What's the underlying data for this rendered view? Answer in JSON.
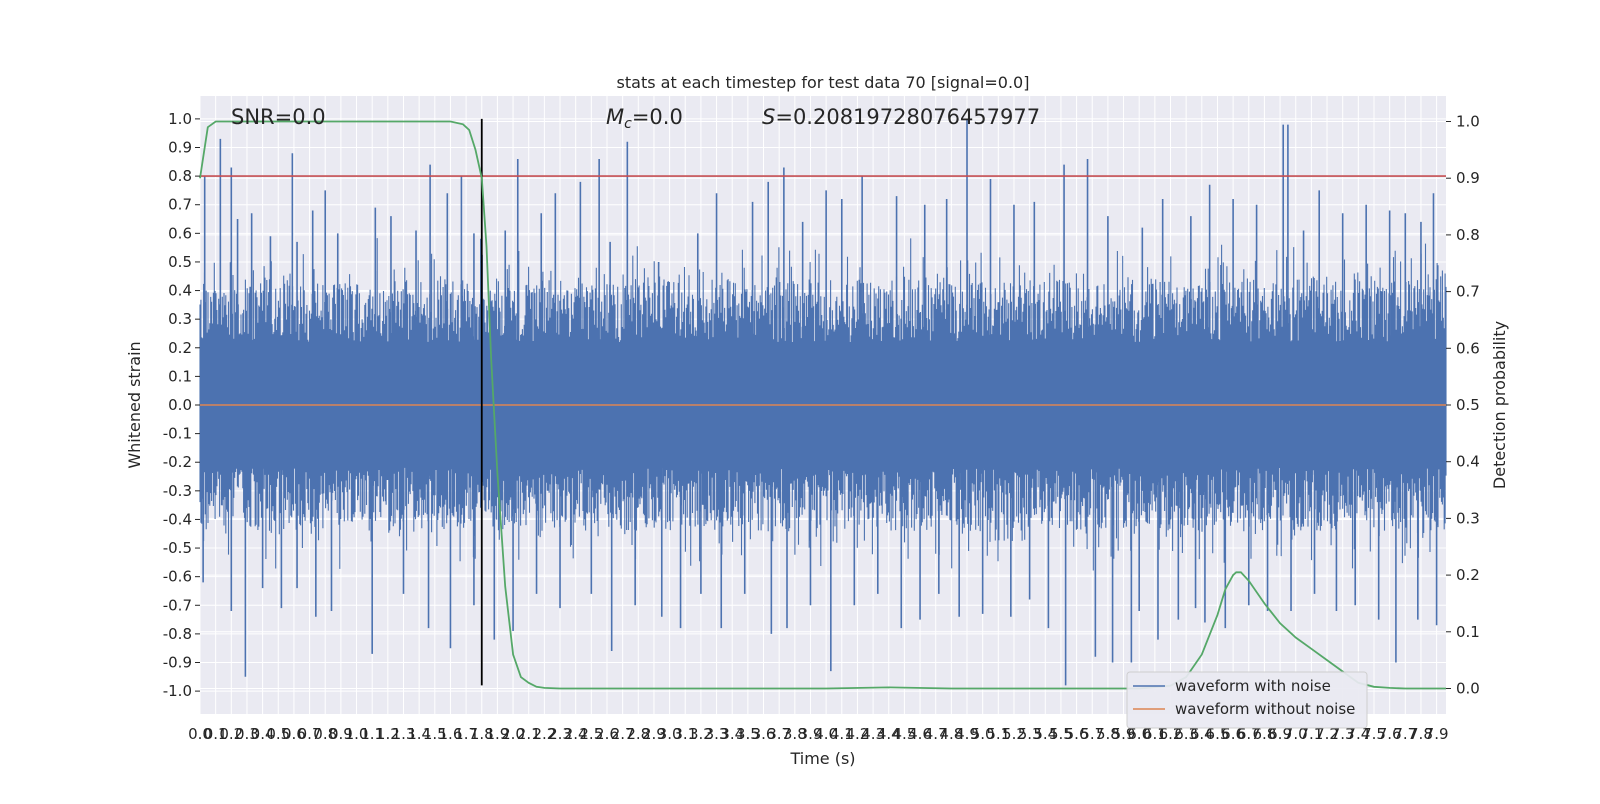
{
  "chart_data": {
    "type": "line",
    "title": "stats at each timestep for test data 70 [signal=0.0]",
    "xlabel": "Time (s)",
    "ylabel": "Whitened strain",
    "y2label": "Detection probability",
    "xlim": [
      0.0,
      7.96
    ],
    "ylim": [
      -1.08,
      1.08
    ],
    "y2lim": [
      -0.045,
      1.045
    ],
    "x_ticks": [
      0.0,
      0.1,
      0.2,
      0.3,
      0.4,
      0.5,
      0.6,
      0.7,
      0.8,
      0.9,
      1.0,
      1.1,
      1.2,
      1.3,
      1.4,
      1.5,
      1.6,
      1.7,
      1.8,
      1.9,
      2.0,
      2.1,
      2.2,
      2.3,
      2.4,
      2.5,
      2.6,
      2.7,
      2.8,
      2.9,
      3.0,
      3.1,
      3.2,
      3.3,
      3.4,
      3.5,
      3.6,
      3.7,
      3.8,
      3.9,
      4.0,
      4.1,
      4.2,
      4.3,
      4.4,
      4.5,
      4.6,
      4.7,
      4.8,
      4.9,
      5.0,
      5.1,
      5.2,
      5.3,
      5.4,
      5.5,
      5.6,
      5.7,
      5.8,
      5.9,
      6.0,
      6.1,
      6.2,
      6.3,
      6.4,
      6.5,
      6.6,
      6.7,
      6.8,
      6.9,
      7.0,
      7.1,
      7.2,
      7.3,
      7.4,
      7.5,
      7.6,
      7.7,
      7.8,
      7.9
    ],
    "x_tick_labels": [
      "0.0",
      "0.1",
      "0.2",
      "0.3",
      "0.4",
      "0.5",
      "0.6",
      "0.7",
      "0.8",
      "0.9",
      "1.0",
      "1.1",
      "1.2",
      "1.3",
      "1.4",
      "1.5",
      "1.6",
      "1.7",
      "1.8",
      "1.9",
      "2.0",
      "2.1",
      "2.2",
      "2.3",
      "2.4",
      "2.5",
      "2.6",
      "2.7",
      "2.8",
      "2.9",
      "3.0",
      "3.1",
      "3.2",
      "3.3",
      "3.4",
      "3.5",
      "3.6",
      "3.7",
      "3.8",
      "3.9",
      "4.0",
      "4.1",
      "4.2",
      "4.3",
      "4.4",
      "4.5",
      "4.6",
      "4.7",
      "4.8",
      "4.9",
      "5.0",
      "5.1",
      "5.2",
      "5.3",
      "5.4",
      "5.5",
      "5.6",
      "5.7",
      "5.8",
      "5.9",
      "6.0",
      "6.1",
      "6.2",
      "6.3",
      "6.4",
      "6.5",
      "6.6",
      "6.7",
      "6.8",
      "6.9",
      "7.0",
      "7.1",
      "7.2",
      "7.3",
      "7.4",
      "7.5",
      "7.6",
      "7.7",
      "7.8",
      "7.9"
    ],
    "y_ticks": [
      1.0,
      0.9,
      0.8,
      0.7,
      0.6,
      0.5,
      0.4,
      0.3,
      0.2,
      0.1,
      0.0,
      -0.1,
      -0.2,
      -0.3,
      -0.4,
      -0.5,
      -0.6,
      -0.7,
      -0.8,
      -0.9,
      -1.0
    ],
    "y_tick_labels": [
      "1.0",
      "0.9",
      "0.8",
      "0.7",
      "0.6",
      "0.5",
      "0.4",
      "0.3",
      "0.2",
      "0.1",
      "0.0",
      "-0.1",
      "-0.2",
      "-0.3",
      "-0.4",
      "-0.5",
      "-0.6",
      "-0.7",
      "-0.8",
      "-0.9",
      "-1.0"
    ],
    "y2_ticks": [
      1.0,
      0.9,
      0.8,
      0.7,
      0.6,
      0.5,
      0.4,
      0.3,
      0.2,
      0.1,
      0.0
    ],
    "y2_tick_labels": [
      "1.0",
      "0.9",
      "0.8",
      "0.7",
      "0.6",
      "0.5",
      "0.4",
      "0.3",
      "0.2",
      "0.1",
      "0.0"
    ],
    "grid": true,
    "legend_position": "lower-right",
    "annotations": {
      "snr": "SNR=0.0",
      "mc_symbol": "M",
      "mc_subscript": "c",
      "mc_value": "=0.0",
      "s_symbol": "S",
      "s_value": "=0.20819728076457977"
    },
    "series": [
      {
        "name": "waveform with noise",
        "color": "#4c72b0",
        "kind": "noise",
        "peaks_upper": [
          [
            0.03,
            0.8
          ],
          [
            0.13,
            0.93
          ],
          [
            0.2,
            0.83
          ],
          [
            0.24,
            0.65
          ],
          [
            0.33,
            0.67
          ],
          [
            0.45,
            0.59
          ],
          [
            0.59,
            0.88
          ],
          [
            0.62,
            0.57
          ],
          [
            0.72,
            0.68
          ],
          [
            0.8,
            0.75
          ],
          [
            0.88,
            0.6
          ],
          [
            1.12,
            0.69
          ],
          [
            1.22,
            0.66
          ],
          [
            1.38,
            0.61
          ],
          [
            1.47,
            0.84
          ],
          [
            1.58,
            0.74
          ],
          [
            1.67,
            0.8
          ],
          [
            1.75,
            0.6
          ],
          [
            1.95,
            0.61
          ],
          [
            2.03,
            0.86
          ],
          [
            2.18,
            0.67
          ],
          [
            2.27,
            0.74
          ],
          [
            2.43,
            0.78
          ],
          [
            2.55,
            0.86
          ],
          [
            2.62,
            0.57
          ],
          [
            2.73,
            0.92
          ],
          [
            2.93,
            0.5
          ],
          [
            3.18,
            0.6
          ],
          [
            3.3,
            0.74
          ],
          [
            3.53,
            0.71
          ],
          [
            3.63,
            0.78
          ],
          [
            3.73,
            0.83
          ],
          [
            3.85,
            0.64
          ],
          [
            4.0,
            0.75
          ],
          [
            4.1,
            0.72
          ],
          [
            4.23,
            0.8
          ],
          [
            4.45,
            0.73
          ],
          [
            4.63,
            0.7
          ],
          [
            4.77,
            0.72
          ],
          [
            4.9,
            1.0
          ],
          [
            5.05,
            0.79
          ],
          [
            5.2,
            0.7
          ],
          [
            5.33,
            0.71
          ],
          [
            5.52,
            0.84
          ],
          [
            5.67,
            0.86
          ],
          [
            5.8,
            0.66
          ],
          [
            6.02,
            0.62
          ],
          [
            6.15,
            0.72
          ],
          [
            6.33,
            0.66
          ],
          [
            6.45,
            0.77
          ],
          [
            6.6,
            0.72
          ],
          [
            6.75,
            0.7
          ],
          [
            6.92,
            0.98
          ],
          [
            6.95,
            0.98
          ],
          [
            7.05,
            0.61
          ],
          [
            7.15,
            0.75
          ],
          [
            7.3,
            0.67
          ],
          [
            7.45,
            0.7
          ],
          [
            7.6,
            0.68
          ],
          [
            7.7,
            0.67
          ],
          [
            7.8,
            0.64
          ],
          [
            7.88,
            0.74
          ]
        ],
        "peaks_lower": [
          [
            0.02,
            -0.62
          ],
          [
            0.2,
            -0.72
          ],
          [
            0.29,
            -0.95
          ],
          [
            0.4,
            -0.64
          ],
          [
            0.52,
            -0.71
          ],
          [
            0.62,
            -0.64
          ],
          [
            0.74,
            -0.74
          ],
          [
            0.84,
            -0.72
          ],
          [
            1.1,
            -0.87
          ],
          [
            1.3,
            -0.66
          ],
          [
            1.46,
            -0.78
          ],
          [
            1.6,
            -0.85
          ],
          [
            1.75,
            -0.7
          ],
          [
            1.88,
            -0.82
          ],
          [
            2.0,
            -0.79
          ],
          [
            2.15,
            -0.66
          ],
          [
            2.3,
            -0.71
          ],
          [
            2.5,
            -0.66
          ],
          [
            2.63,
            -0.86
          ],
          [
            2.78,
            -0.7
          ],
          [
            2.95,
            -0.74
          ],
          [
            3.07,
            -0.78
          ],
          [
            3.2,
            -0.66
          ],
          [
            3.33,
            -0.78
          ],
          [
            3.48,
            -0.66
          ],
          [
            3.65,
            -0.8
          ],
          [
            3.75,
            -0.78
          ],
          [
            3.9,
            -0.7
          ],
          [
            4.03,
            -0.93
          ],
          [
            4.18,
            -0.7
          ],
          [
            4.33,
            -0.66
          ],
          [
            4.48,
            -0.78
          ],
          [
            4.6,
            -0.75
          ],
          [
            4.72,
            -0.66
          ],
          [
            4.85,
            -0.74
          ],
          [
            5.0,
            -0.73
          ],
          [
            5.18,
            -0.74
          ],
          [
            5.3,
            -0.68
          ],
          [
            5.42,
            -0.78
          ],
          [
            5.53,
            -0.98
          ],
          [
            5.72,
            -0.88
          ],
          [
            5.83,
            -0.9
          ],
          [
            5.95,
            -0.9
          ],
          [
            6.0,
            -0.72
          ],
          [
            6.12,
            -0.82
          ],
          [
            6.25,
            -0.75
          ],
          [
            6.36,
            -0.71
          ],
          [
            6.42,
            -0.76
          ],
          [
            6.55,
            -0.78
          ],
          [
            6.7,
            -0.7
          ],
          [
            6.82,
            -0.72
          ],
          [
            6.97,
            -0.72
          ],
          [
            7.12,
            -0.66
          ],
          [
            7.26,
            -0.72
          ],
          [
            7.38,
            -0.7
          ],
          [
            7.53,
            -0.75
          ],
          [
            7.64,
            -0.9
          ],
          [
            7.78,
            -0.75
          ],
          [
            7.9,
            -0.77
          ]
        ],
        "typical_amplitude": 0.4
      },
      {
        "name": "waveform without noise",
        "color": "#dd8452",
        "kind": "constant",
        "value": 0.0
      },
      {
        "name": "",
        "color": "#55a868",
        "kind": "probability",
        "axis": "right",
        "x": [
          0.0,
          0.05,
          0.1,
          0.2,
          0.5,
          1.0,
          1.5,
          1.6,
          1.68,
          1.72,
          1.76,
          1.8,
          1.83,
          1.86,
          1.9,
          1.95,
          2.0,
          2.05,
          2.1,
          2.15,
          2.2,
          2.3,
          2.4,
          2.6,
          3.0,
          4.0,
          4.4,
          4.8,
          5.5,
          6.0,
          6.2,
          6.3,
          6.4,
          6.5,
          6.55,
          6.6,
          6.62,
          6.65,
          6.7,
          6.8,
          6.9,
          7.0,
          7.1,
          7.2,
          7.3,
          7.4,
          7.5,
          7.6,
          7.7,
          7.8,
          7.96
        ],
        "y": [
          0.9,
          0.99,
          1.0,
          1.0,
          1.0,
          1.0,
          1.0,
          1.0,
          0.995,
          0.985,
          0.95,
          0.9,
          0.78,
          0.58,
          0.38,
          0.18,
          0.06,
          0.02,
          0.01,
          0.003,
          0.001,
          0.0,
          0.0,
          0.0,
          0.0,
          0.0,
          0.002,
          0.0,
          0.0,
          0.0,
          0.005,
          0.02,
          0.06,
          0.13,
          0.175,
          0.2,
          0.205,
          0.205,
          0.19,
          0.15,
          0.115,
          0.09,
          0.07,
          0.05,
          0.03,
          0.01,
          0.003,
          0.001,
          0.0,
          0.0,
          0.0
        ]
      }
    ],
    "reference_lines": [
      {
        "kind": "horizontal",
        "axis": "left",
        "value": 0.8,
        "color": "#c44e52"
      },
      {
        "kind": "vertical",
        "value": 1.8,
        "y_from": -0.98,
        "y_to": 1.0,
        "color": "#000000"
      }
    ],
    "legend": [
      "waveform with noise",
      "waveform without noise"
    ]
  }
}
